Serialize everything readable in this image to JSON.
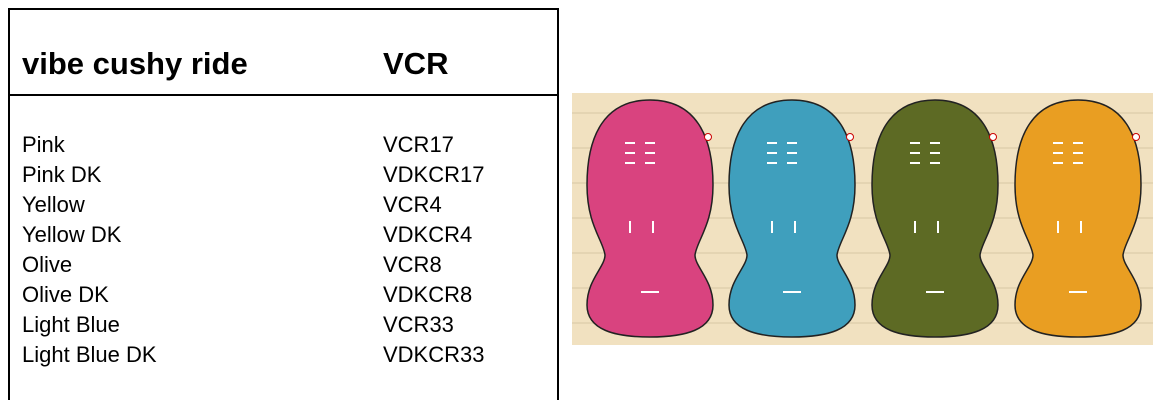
{
  "header": {
    "title": "vibe cushy ride",
    "code": "VCR"
  },
  "rows": [
    [
      "Pink",
      "VCR17"
    ],
    [
      "Pink DK",
      "VDKCR17"
    ],
    [
      "Yellow",
      "VCR4"
    ],
    [
      "Yellow DK",
      "VDKCR4"
    ],
    [
      "Olive",
      "VCR8"
    ],
    [
      "Olive DK",
      "VDKCR8"
    ],
    [
      "Light Blue",
      "VCR33"
    ],
    [
      "Light Blue DK",
      "VDKCR33"
    ]
  ]
}
